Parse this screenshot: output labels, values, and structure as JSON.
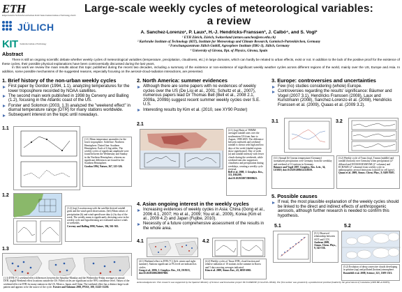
{
  "logos": {
    "eth_name": "ETH",
    "eth_subtitle": "Eidgenössische Technische Hochschule Zürich Swiss Federal Institute of Technology Zurich",
    "juelich_name": "JÜLICH",
    "kit_name": "KIT",
    "kit_subtitle": "Karlsruhe Institute of Technology"
  },
  "header": {
    "title": "Large-scale weekly cycles of meteorological variables: a review",
    "authors": "A. Sanchez-Lorenzo¹, P. Laux², H.-J. Hendricks-Franssen³, J. Calbó⁴, and S. Vogl²",
    "affiliations": [
      "¹ ETH Zürich, Zürich, Switzerland (arturo.sanchez@env.ethz.ch)",
      "² Karlsruhe Institute of Technology (KIT), Institute for Meteorology and Climate Research, Garmisch-Partenkirchen, Germany",
      "³ Forschungszentrum Jülich GmbH, Agrosphere Institute (IBG-3), Jülich, Germany",
      "⁴ University of Girona, Dpt. of Physics, Girona, Spain"
    ]
  },
  "abstract": {
    "title": "Abstract",
    "p1": "There is still an ongoing scientific debate whether weekly cycles of meteorological variables (temperature, precipitation, cloudiness, etc.) in large domains, which can hardly be related to urban effects, exist or not. In addition to the lack of the positive proof for the existence of these cycles, their possible physical explanations have been controversially discussed during the last years.",
    "p2": "In this work we review the main results about this topic published during the recent two decades, including a summary of the existence or non-existence of significant weekly weather cycles across different regions of the world, mainly over the US, Europe and Asia. In addition, some possible mechanisms of the suggested reasons, especially focusing on the aerosol-cloud-radiation interactions, are presented."
  },
  "col1": {
    "title": "1. Brief history of the non-urban weekly cycles",
    "bullets": [
      "First paper by Gordon (1994, 1.1), analyzing temperatures for the lower troposphere recorded by NOAA satellites.",
      "The second main work published in 1998 by Cerveny and Balling (1.2), focusing in the Atlantic coast of the US.",
      "Forster and Solomon (2003, 1.3) analyzed the \"weekend effect\" in diurnal temperature range (DTR) for many stations worldwide.",
      "Subsequent interest on the topic until nowadays."
    ],
    "fig11_label": "1.1",
    "fig11_caption": "(1.1) Mean temperature anomalies for the lower troposphere. Solid line: Northern Hemisphere. Dotted line: Southern Hemisphere. Each of 6 big tables. The weekly cycles of significant amplitude were found between the Wednesday and Sunday in the Northern Hemisphere, whereas no significant differences are found for the Southern Hemisphere.",
    "fig11_ref": "Gordon 1994, Nature, 367, 325-326.",
    "fig12_label": "1.2",
    "fig12_caption": "(1.2) (top) Location map with the satellite-derived rainfall grids and the wind speed observations. (left) Mean values of precipitation (b) and wind speed/wave data (c) by day of the week. The weekly mean is significantly deviating wave in the weekly cycle and hypothesizing are evaluated surface winds at weekends.",
    "fig12_ref": "Cerveny and Balling 1998, Nature, 394, 561-563.",
    "fig13_label": "1.3",
    "fig13_caption": "(1.3) DTR (°C) weekend effect differences between the Saturday-Monday and the Wednesday-Friday averages in annual DTR. (right) Weekend effect locations outside the US. Filled circles are significant at the 95% confidence level. Values of the weekend effect in DTR for many stations in the US, Mexico, Japan, and China. The weekend effect has a distinct large-scale pattern and appears to be the source of the cycle.",
    "fig13_ref": "Forster and Solomon 2003, PNAS, 100, 11225-11230."
  },
  "col2": {
    "title": "2. North America: summer evidences",
    "bullets": [
      "Although there are some papers with no evidences of weekly cycles over the US (De Lisi et al., 2001; Schultz et al., 2007), numerous papers lead Dr Thomas Bell (Bell et al., 2008 2.1, 2009a, 2009b) suggest recent summer weekly cycles over S.E. U.S.",
      "Interesting results by Kim et al. (2010, see XY90 Poster)"
    ],
    "fig21_label": "2.1",
    "fig21_caption": "(2.1) (top) Ratio of TRMM-averaged rainfall rates over the southeastern US from June to August, 1998-2005. The difference between midweek and weekend rainfall is shown with high and low days of the week (shaded regions show significance). Day of week (a) and rainfall intensity with fewer clouds during the weekends, while weekend rain also suppresses cloudiness and precipitation during weekdays, creating a weekly cycle reversal.",
    "fig21_ref": "Bell et al. 2008, J. Geophys. Res., 113, D02209, doi:10.1029/2007JD008623.",
    "section4_title": "4. Asian ongoing interest in the weekly cycles",
    "section4_bullets": [
      "Increasing evidences of weekly cycles in Asia: China (Gong et al., 2006 4.1, 2007; Ho et al., 2009; You et al., 2009), Korea (Kim et al., 2009 4.2) and Japan (Fujibe, 2010).",
      "Necessity of a future comprehensive assessment of the results in the whole area."
    ],
    "fig41_label": "4.1",
    "fig41_caption": "(4.1) Weekend effect in DTR (°C) (left: winter and right: summer). Stations significant at 5% level are indicated as circles.",
    "fig41_ref": "Gong et al., 2006, J. Geophys. Res., 111, D18113, doi:10.1029/2006JD007068.",
    "fig42_label": "4.2",
    "fig42_caption": "(4.2) Weekly cycles of Tmax DTR, cloud fraction and relative radiation of 10 stations in the summer in Korea and 5 days moving averages indicated.",
    "fig42_ref": "Kim et al. 2009, Atmos Env., 43, 6058-6065.",
    "ack": "Acknowledgements: This research was supported by the Spanish Ministry of Science and Innovation project NUCLEREDE (CGL2010-18546). The first author was granted by a postdoctoral position funded by the government of Catalonia (2009 BP-A 00035)."
  },
  "col3": {
    "title": "3. Europe: controversies and uncertainties",
    "bullets": [
      "Few (no) studies considering (whole) Europe.",
      "Controversies regarding the results' significance: Bäumer and Vogel (2007 3.1), Hendricks Franssen (2008), Laux and Kunstmann (2008), Sanchez-Lorenzo et al. (2008), Hendricks Franssen et al. (2009), Quaas et al. (2009 3.2)."
    ],
    "fig31_label": "3.1",
    "fig31_caption": "(3.1) Annual (b-f) mean temperature (Germany) normalized precipitation over Germany from the weekday and weekend of 12 stations in Germany.",
    "fig31_ref": "Bäumer and Vogel 2007, Geophys. Res. Lett., 34, L03819, doi:10.1029/2006GL028559.",
    "fig32_label": "3.2",
    "fig32_caption": "(3.2) Weekly cycle of Tmax (top), Tmean (middle) and rainfall (bottom) over Germany when precipitation (2° diffused and ECHAM-HAM5/MI (2° columns) and ECHAM5 (2° columns) from weekly cycle in anthropogenic aerosol emissions (control) in cell (grey).",
    "fig32_ref": "Quaas et al. 2009, Atmos. Chem. Phys., 9, 8493-8501.",
    "section5_title": "5. Possible causes",
    "section5_bullets": [
      "If real, the most plausible explanation of the weekly cycles should be linked to the direct and indirect effects of anthropogenic aerosols, although further research is needed to confirm this hypothesis."
    ],
    "fig51_label": "5.1",
    "fig51_caption": "(5.1) Observed relationship between AOT and CCN.",
    "fig51_ref": "Andreae 2009, Atmos. Chem. Phys., 9, 543-556.",
    "fig52_label": "5.2",
    "fig52_caption": "(5.2) Evolution of deep convective clouds developing in pristine (top) and polluted (bottom) atmosphere.",
    "fig52_ref": "Rosenfeld et al. 2008, Science, 321, 1309-1313."
  },
  "colors": {
    "bullet": "#4a6fb0",
    "juelich_blue": "#1f5fb0",
    "kit_green": "#009682",
    "map_land": "#8ab86a",
    "map_sea": "#c9dff2"
  }
}
